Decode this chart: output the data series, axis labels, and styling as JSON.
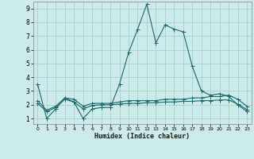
{
  "xlabel": "Humidex (Indice chaleur)",
  "background_color": "#cceaea",
  "grid_color": "#aacece",
  "line_color": "#1a6b6b",
  "xlim": [
    -0.5,
    23.5
  ],
  "ylim": [
    0.6,
    9.5
  ],
  "xticks": [
    0,
    1,
    2,
    3,
    4,
    5,
    6,
    7,
    8,
    9,
    10,
    11,
    12,
    13,
    14,
    15,
    16,
    17,
    18,
    19,
    20,
    21,
    22,
    23
  ],
  "yticks": [
    1,
    2,
    3,
    4,
    5,
    6,
    7,
    8,
    9
  ],
  "series1_x": [
    0,
    1,
    2,
    3,
    4,
    5,
    6,
    7,
    8,
    9,
    10,
    11,
    12,
    13,
    14,
    15,
    16,
    17,
    18,
    19,
    20,
    21,
    22,
    23
  ],
  "series1_y": [
    3.5,
    1.0,
    1.7,
    2.5,
    2.2,
    1.0,
    1.7,
    1.8,
    1.8,
    3.5,
    5.8,
    7.5,
    9.3,
    6.5,
    7.8,
    7.5,
    7.3,
    4.8,
    3.0,
    2.7,
    2.8,
    2.6,
    2.0,
    1.5
  ],
  "series2_x": [
    0,
    1,
    2,
    3,
    4,
    5,
    6,
    7,
    8,
    9,
    10,
    11,
    12,
    13,
    14,
    15,
    16,
    17,
    18,
    19,
    20,
    21,
    22,
    23
  ],
  "series2_y": [
    2.3,
    1.6,
    1.9,
    2.5,
    2.4,
    1.9,
    2.1,
    2.1,
    2.1,
    2.2,
    2.3,
    2.3,
    2.3,
    2.3,
    2.4,
    2.4,
    2.4,
    2.5,
    2.5,
    2.6,
    2.6,
    2.7,
    2.4,
    1.9
  ],
  "series3_x": [
    0,
    1,
    2,
    3,
    4,
    5,
    6,
    7,
    8,
    9,
    10,
    11,
    12,
    13,
    14,
    15,
    16,
    17,
    18,
    19,
    20,
    21,
    22,
    23
  ],
  "series3_y": [
    2.1,
    1.5,
    1.8,
    2.4,
    2.2,
    1.7,
    1.95,
    2.0,
    2.0,
    2.05,
    2.1,
    2.1,
    2.15,
    2.15,
    2.2,
    2.2,
    2.25,
    2.25,
    2.3,
    2.3,
    2.35,
    2.35,
    2.05,
    1.65
  ]
}
